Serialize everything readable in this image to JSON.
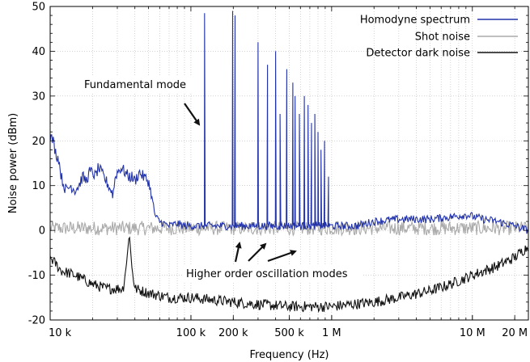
{
  "chart_data": {
    "type": "line",
    "title": "",
    "xlabel": "Frequency (Hz)",
    "ylabel": "Noise power (dBm)",
    "xscale": "log",
    "xlim": [
      10000,
      25000000
    ],
    "ylim": [
      -20,
      50
    ],
    "grid": true,
    "legend_position": "top-right",
    "x_ticks": [
      {
        "value": 10000,
        "label": "10 k"
      },
      {
        "value": 100000,
        "label": "100 k"
      },
      {
        "value": 200000,
        "label": "200 k"
      },
      {
        "value": 500000,
        "label": "500 k"
      },
      {
        "value": 1000000,
        "label": "1 M"
      },
      {
        "value": 10000000,
        "label": "10 M"
      },
      {
        "value": 20000000,
        "label": "20 M"
      }
    ],
    "y_ticks": [
      {
        "value": -20,
        "label": "-20"
      },
      {
        "value": -10,
        "label": "-10"
      },
      {
        "value": 0,
        "label": "0"
      },
      {
        "value": 10,
        "label": "10"
      },
      {
        "value": 20,
        "label": "20"
      },
      {
        "value": 30,
        "label": "30"
      },
      {
        "value": 40,
        "label": "40"
      },
      {
        "value": 50,
        "label": "50"
      }
    ],
    "series": [
      {
        "name": "Homodyne spectrum",
        "color": "#2233aa",
        "baseline": [
          [
            10000,
            21
          ],
          [
            10500,
            20
          ],
          [
            11000,
            17
          ],
          [
            11500,
            16
          ],
          [
            12000,
            12
          ],
          [
            12500,
            10
          ],
          [
            13000,
            9
          ],
          [
            14000,
            10
          ],
          [
            15000,
            9
          ],
          [
            16000,
            10
          ],
          [
            17000,
            12
          ],
          [
            18000,
            11
          ],
          [
            19000,
            13
          ],
          [
            20000,
            13
          ],
          [
            21000,
            12
          ],
          [
            22000,
            14
          ],
          [
            23000,
            13
          ],
          [
            24000,
            12
          ],
          [
            25000,
            11
          ],
          [
            26000,
            10
          ],
          [
            27000,
            9
          ],
          [
            28000,
            8
          ],
          [
            29000,
            12
          ],
          [
            30000,
            13
          ],
          [
            32000,
            14
          ],
          [
            34000,
            13
          ],
          [
            36000,
            12
          ],
          [
            38000,
            12
          ],
          [
            40000,
            11
          ],
          [
            43000,
            13
          ],
          [
            46000,
            12
          ],
          [
            50000,
            11
          ],
          [
            53000,
            7
          ],
          [
            56000,
            3
          ],
          [
            60000,
            2
          ],
          [
            70000,
            1
          ],
          [
            80000,
            1.5
          ],
          [
            90000,
            1
          ],
          [
            100000,
            1
          ],
          [
            150000,
            1
          ],
          [
            300000,
            1
          ],
          [
            1000000,
            1
          ],
          [
            1500000,
            1
          ],
          [
            2000000,
            2
          ],
          [
            3000000,
            2.5
          ],
          [
            5000000,
            2.5
          ],
          [
            7000000,
            3
          ],
          [
            9000000,
            3.5
          ],
          [
            12000000,
            2.5
          ],
          [
            15000000,
            2
          ],
          [
            20000000,
            1
          ],
          [
            25000000,
            0
          ]
        ],
        "peaks": [
          [
            125000,
            48.5
          ],
          [
            198000,
            49
          ],
          [
            206000,
            48
          ],
          [
            300000,
            42
          ],
          [
            350000,
            37
          ],
          [
            400000,
            40
          ],
          [
            430000,
            26
          ],
          [
            480000,
            36
          ],
          [
            530000,
            33
          ],
          [
            550000,
            30
          ],
          [
            590000,
            26
          ],
          [
            640000,
            30
          ],
          [
            680000,
            28
          ],
          [
            720000,
            24
          ],
          [
            760000,
            26
          ],
          [
            800000,
            22
          ],
          [
            840000,
            18
          ],
          [
            890000,
            20
          ],
          [
            950000,
            12
          ]
        ]
      },
      {
        "name": "Shot noise",
        "color": "#aaaaaa",
        "level": 0.5
      },
      {
        "name": "Detector dark noise",
        "color": "#111111",
        "baseline": [
          [
            10000,
            -6
          ],
          [
            12000,
            -9
          ],
          [
            15000,
            -10
          ],
          [
            20000,
            -12
          ],
          [
            25000,
            -13
          ],
          [
            30000,
            -13
          ],
          [
            33000,
            -13
          ],
          [
            35000,
            -7
          ],
          [
            36500,
            -0.5
          ],
          [
            38000,
            -8
          ],
          [
            40000,
            -13
          ],
          [
            50000,
            -14
          ],
          [
            70000,
            -15
          ],
          [
            100000,
            -15
          ],
          [
            200000,
            -16
          ],
          [
            300000,
            -16.5
          ],
          [
            500000,
            -17
          ],
          [
            1000000,
            -17
          ],
          [
            2000000,
            -16
          ],
          [
            3000000,
            -15
          ],
          [
            5000000,
            -13.5
          ],
          [
            7000000,
            -12
          ],
          [
            10000000,
            -10
          ],
          [
            15000000,
            -8
          ],
          [
            20000000,
            -6
          ],
          [
            25000000,
            -3.5
          ]
        ]
      }
    ],
    "annotations": [
      {
        "text": "Fundamental mode"
      },
      {
        "text": "Higher order oscillation modes"
      }
    ]
  }
}
